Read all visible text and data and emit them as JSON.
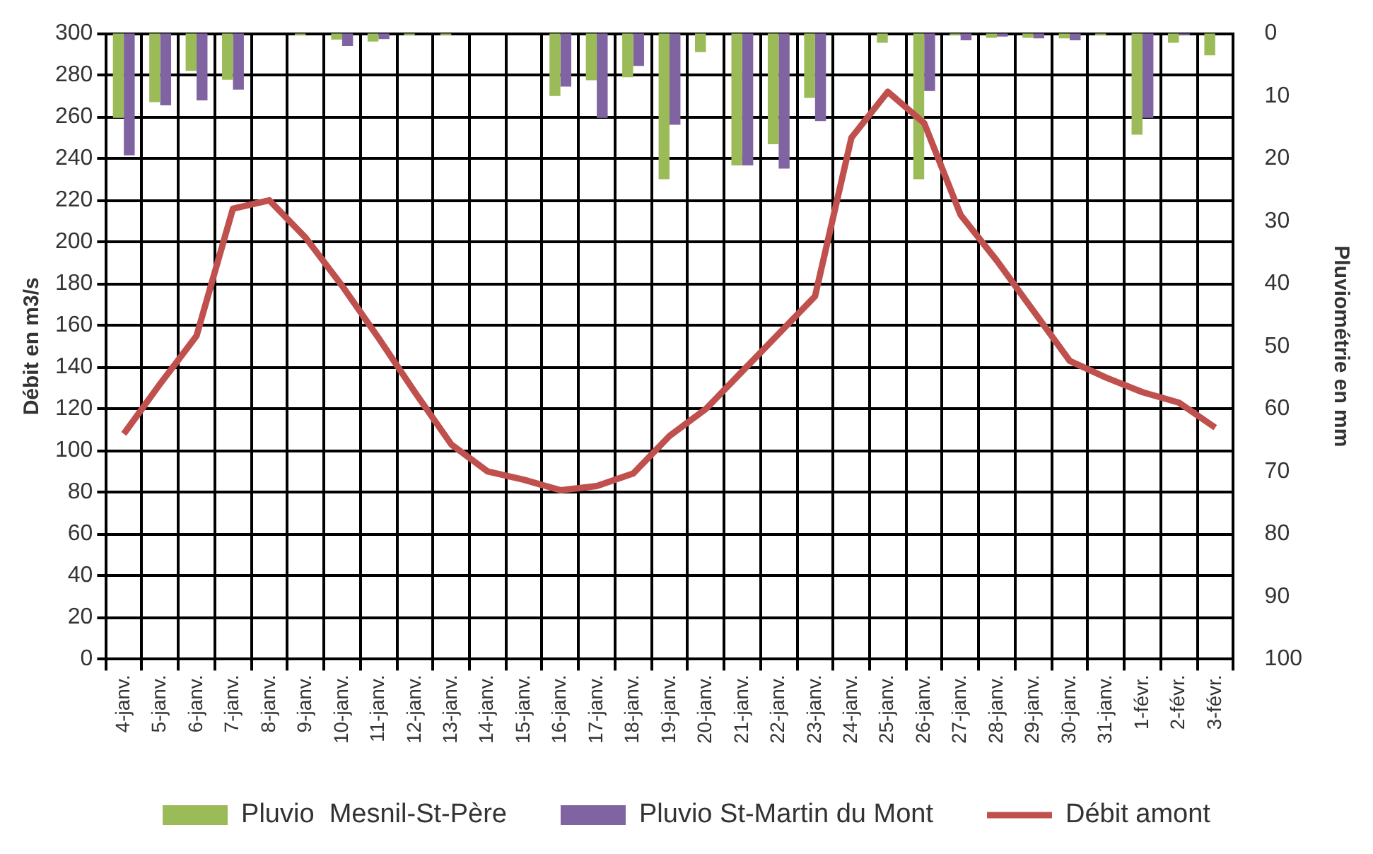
{
  "chart_data": {
    "type": "bar",
    "ylabel": "Débit en m3/s",
    "y2label": "Pluviométrie en mm",
    "categories": [
      "4-janv.",
      "5-janv.",
      "6-janv.",
      "7-janv.",
      "8-janv.",
      "9-janv.",
      "10-janv.",
      "11-janv.",
      "12-janv.",
      "13-janv.",
      "14-janv.",
      "15-janv.",
      "16-janv.",
      "17-janv.",
      "18-janv.",
      "19-janv.",
      "20-janv.",
      "21-janv.",
      "22-janv.",
      "23-janv.",
      "24-janv.",
      "25-janv.",
      "26-janv.",
      "27-janv.",
      "28-janv.",
      "29-janv.",
      "30-janv.",
      "31-janv.",
      "1-févr.",
      "2-févr.",
      "3-févr."
    ],
    "series": [
      {
        "name": "Pluvio  Mesnil-St-Père",
        "axis": "y2",
        "color": "#9bbb59",
        "values": [
          13.5,
          11,
          6,
          7.4,
          0,
          0.3,
          1,
          1.3,
          0.3,
          0.3,
          0,
          0,
          10,
          7.5,
          7,
          23.3,
          3,
          21.1,
          17.7,
          10.3,
          0,
          1.5,
          23.3,
          0.3,
          0.7,
          0.7,
          0.8,
          0.3,
          16.2,
          1.5,
          3.5
        ]
      },
      {
        "name": "Pluvio St-Martin du Mont",
        "axis": "y2",
        "color": "#8064a2",
        "values": [
          19.5,
          11.5,
          10.7,
          9,
          0,
          0,
          2,
          0.9,
          0,
          0,
          0,
          0,
          8.5,
          13.5,
          5.2,
          14.6,
          0,
          21.1,
          21.6,
          14,
          0,
          0,
          9.2,
          1.1,
          0.5,
          0.8,
          1.1,
          0,
          13.5,
          0.3,
          0
        ]
      },
      {
        "name": "Débit amont",
        "type": "line",
        "axis": "y",
        "color": "#c0504d",
        "values": [
          108,
          132,
          155,
          216,
          220,
          202,
          179,
          154,
          128,
          103,
          90,
          86,
          81,
          83,
          89,
          107,
          120,
          138,
          156,
          174,
          250,
          272,
          257,
          213,
          191,
          167,
          143,
          135,
          128,
          123,
          111
        ]
      }
    ],
    "ylim": [
      0,
      300
    ],
    "yticks": [
      0,
      20,
      40,
      60,
      80,
      100,
      120,
      140,
      160,
      180,
      200,
      220,
      240,
      260,
      280,
      300
    ],
    "y2lim": [
      100,
      0
    ],
    "y2ticks": [
      0,
      10,
      20,
      30,
      40,
      50,
      60,
      70,
      80,
      90,
      100
    ],
    "grid": true,
    "legend": "bottom",
    "marker": "none"
  }
}
